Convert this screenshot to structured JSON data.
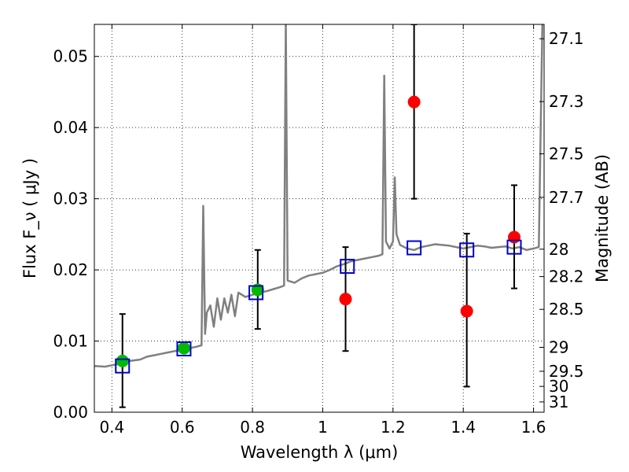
{
  "chart_data": {
    "type": "scatter",
    "xlabel": "Wavelength λ (μm)",
    "ylabel": "Flux F_ν ( μJy )",
    "ylabel_right": "Magnitude (AB)",
    "xlim": [
      0.35,
      1.63
    ],
    "ylim": [
      0.0,
      0.0545
    ],
    "x_ticks": [
      {
        "value": 0.4,
        "label": "0.4"
      },
      {
        "value": 0.6,
        "label": "0.6"
      },
      {
        "value": 0.8,
        "label": "0.8"
      },
      {
        "value": 1.0,
        "label": "1"
      },
      {
        "value": 1.2,
        "label": "1.2"
      },
      {
        "value": 1.4,
        "label": "1.4"
      },
      {
        "value": 1.6,
        "label": "1.6"
      }
    ],
    "y_ticks": [
      {
        "value": 0.0,
        "label": "0.00"
      },
      {
        "value": 0.01,
        "label": "0.01"
      },
      {
        "value": 0.02,
        "label": "0.02"
      },
      {
        "value": 0.03,
        "label": "0.03"
      },
      {
        "value": 0.04,
        "label": "0.04"
      },
      {
        "value": 0.05,
        "label": "0.05"
      }
    ],
    "right_ticks": [
      {
        "mag": 27.1,
        "label": "27.1"
      },
      {
        "mag": 27.3,
        "label": "27.3"
      },
      {
        "mag": 27.5,
        "label": "27.5"
      },
      {
        "mag": 27.7,
        "label": "27.7"
      },
      {
        "mag": 28.0,
        "label": "28"
      },
      {
        "mag": 28.2,
        "label": "28.2"
      },
      {
        "mag": 28.5,
        "label": "28.5"
      },
      {
        "mag": 29.0,
        "label": "29"
      },
      {
        "mag": 29.5,
        "label": "29.5"
      },
      {
        "mag": 30.0,
        "label": "30"
      },
      {
        "mag": 31.0,
        "label": "31"
      }
    ],
    "grid": true,
    "series": [
      {
        "kind": "line",
        "color": "#808080",
        "points": [
          [
            0.35,
            0.0065
          ],
          [
            0.38,
            0.0064
          ],
          [
            0.4,
            0.0066
          ],
          [
            0.42,
            0.0068
          ],
          [
            0.45,
            0.0072
          ],
          [
            0.48,
            0.0074
          ],
          [
            0.5,
            0.0078
          ],
          [
            0.52,
            0.008
          ],
          [
            0.54,
            0.0082
          ],
          [
            0.56,
            0.0084
          ],
          [
            0.58,
            0.0086
          ],
          [
            0.6,
            0.0088
          ],
          [
            0.62,
            0.009
          ],
          [
            0.64,
            0.0092
          ],
          [
            0.655,
            0.0094
          ],
          [
            0.66,
            0.029
          ],
          [
            0.665,
            0.011
          ],
          [
            0.67,
            0.014
          ],
          [
            0.68,
            0.015
          ],
          [
            0.69,
            0.012
          ],
          [
            0.7,
            0.016
          ],
          [
            0.71,
            0.013
          ],
          [
            0.72,
            0.016
          ],
          [
            0.73,
            0.014
          ],
          [
            0.74,
            0.0165
          ],
          [
            0.75,
            0.0135
          ],
          [
            0.76,
            0.0168
          ],
          [
            0.78,
            0.0162
          ],
          [
            0.8,
            0.0165
          ],
          [
            0.82,
            0.0168
          ],
          [
            0.84,
            0.017
          ],
          [
            0.86,
            0.0173
          ],
          [
            0.88,
            0.0176
          ],
          [
            0.89,
            0.0178
          ],
          [
            0.895,
            0.055
          ],
          [
            0.9,
            0.0185
          ],
          [
            0.92,
            0.0182
          ],
          [
            0.94,
            0.0188
          ],
          [
            0.96,
            0.0192
          ],
          [
            0.98,
            0.0194
          ],
          [
            1.0,
            0.0196
          ],
          [
            1.02,
            0.02
          ],
          [
            1.04,
            0.0205
          ],
          [
            1.06,
            0.0208
          ],
          [
            1.08,
            0.0212
          ],
          [
            1.1,
            0.0214
          ],
          [
            1.12,
            0.0216
          ],
          [
            1.14,
            0.0218
          ],
          [
            1.16,
            0.022
          ],
          [
            1.17,
            0.0222
          ],
          [
            1.175,
            0.0473
          ],
          [
            1.18,
            0.024
          ],
          [
            1.19,
            0.023
          ],
          [
            1.2,
            0.024
          ],
          [
            1.205,
            0.033
          ],
          [
            1.21,
            0.025
          ],
          [
            1.22,
            0.0235
          ],
          [
            1.24,
            0.023
          ],
          [
            1.26,
            0.0228
          ],
          [
            1.28,
            0.0232
          ],
          [
            1.3,
            0.0234
          ],
          [
            1.32,
            0.0236
          ],
          [
            1.34,
            0.0235
          ],
          [
            1.36,
            0.0234
          ],
          [
            1.38,
            0.0232
          ],
          [
            1.4,
            0.023
          ],
          [
            1.42,
            0.0232
          ],
          [
            1.44,
            0.0234
          ],
          [
            1.46,
            0.0233
          ],
          [
            1.48,
            0.0231
          ],
          [
            1.5,
            0.0232
          ],
          [
            1.52,
            0.0233
          ],
          [
            1.54,
            0.023
          ],
          [
            1.56,
            0.0232
          ],
          [
            1.58,
            0.0228
          ],
          [
            1.6,
            0.023
          ],
          [
            1.615,
            0.0232
          ],
          [
            1.625,
            0.0545
          ]
        ]
      },
      {
        "kind": "errorbar",
        "color": "#000000",
        "points": [
          {
            "x": 0.43,
            "y": 0.0072,
            "lo": 0.0007,
            "hi": 0.0138
          },
          {
            "x": 0.815,
            "y": 0.0172,
            "lo": 0.0117,
            "hi": 0.0228
          },
          {
            "x": 1.065,
            "y": 0.0159,
            "lo": 0.0086,
            "hi": 0.0232
          },
          {
            "x": 1.26,
            "y": 0.0436,
            "lo": 0.03,
            "hi": 0.0545
          },
          {
            "x": 1.41,
            "y": 0.0142,
            "lo": 0.0036,
            "hi": 0.0251
          },
          {
            "x": 1.545,
            "y": 0.0246,
            "lo": 0.0174,
            "hi": 0.0319
          }
        ]
      },
      {
        "kind": "points",
        "color": "#00bb00",
        "points": [
          {
            "x": 0.43,
            "y": 0.0072
          },
          {
            "x": 0.605,
            "y": 0.009
          },
          {
            "x": 0.815,
            "y": 0.0172
          }
        ]
      },
      {
        "kind": "points",
        "color": "#ff0000",
        "points": [
          {
            "x": 1.065,
            "y": 0.0159
          },
          {
            "x": 1.26,
            "y": 0.0436
          },
          {
            "x": 1.41,
            "y": 0.0142
          },
          {
            "x": 1.545,
            "y": 0.0246
          }
        ]
      },
      {
        "kind": "squares",
        "color": "#0000cc",
        "points": [
          {
            "x": 0.43,
            "y": 0.0065
          },
          {
            "x": 0.605,
            "y": 0.0089
          },
          {
            "x": 0.81,
            "y": 0.0168
          },
          {
            "x": 1.07,
            "y": 0.0205
          },
          {
            "x": 1.26,
            "y": 0.0231
          },
          {
            "x": 1.41,
            "y": 0.0228
          },
          {
            "x": 1.545,
            "y": 0.0232
          }
        ]
      }
    ]
  }
}
